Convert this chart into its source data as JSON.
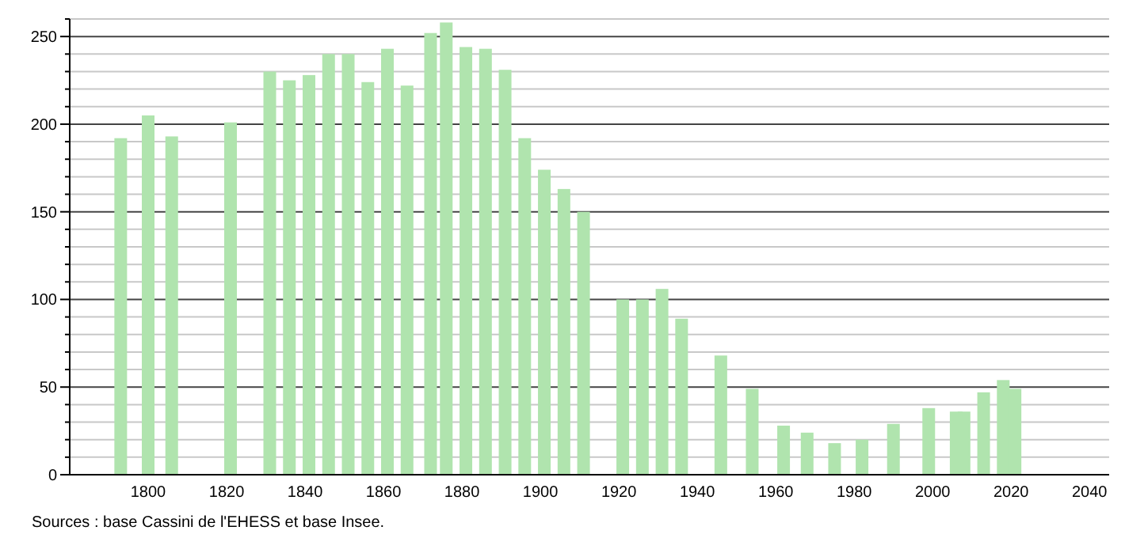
{
  "chart_data": {
    "type": "bar",
    "x": [
      1793,
      1800,
      1806,
      1821,
      1831,
      1836,
      1841,
      1846,
      1851,
      1856,
      1861,
      1866,
      1872,
      1876,
      1881,
      1886,
      1891,
      1896,
      1901,
      1906,
      1911,
      1921,
      1926,
      1931,
      1936,
      1946,
      1954,
      1962,
      1968,
      1975,
      1982,
      1990,
      1999,
      2006,
      2008,
      2013,
      2018,
      2021
    ],
    "values": [
      192,
      205,
      193,
      201,
      230,
      225,
      228,
      240,
      240,
      224,
      243,
      222,
      252,
      258,
      244,
      243,
      231,
      192,
      174,
      163,
      150,
      100,
      100,
      106,
      89,
      68,
      49,
      28,
      24,
      18,
      20,
      29,
      38,
      36,
      36,
      47,
      54,
      49
    ],
    "color": "#b0e4ae",
    "xlim": [
      1780,
      2045
    ],
    "xticks": [
      1800,
      1820,
      1840,
      1860,
      1880,
      1900,
      1920,
      1940,
      1960,
      1980,
      2000,
      2020,
      2040
    ],
    "ylim": [
      0,
      260
    ],
    "yticks": [
      0,
      {
        "value": 10,
        "label": null
      },
      {
        "value": 20,
        "label": null
      },
      {
        "value": 30,
        "label": null
      },
      {
        "value": 40,
        "label": null
      },
      50,
      {
        "value": 60,
        "label": null
      },
      {
        "value": 70,
        "label": null
      },
      {
        "value": 80,
        "label": null
      },
      {
        "value": 90,
        "label": null
      },
      100,
      {
        "value": 110,
        "label": null
      },
      {
        "value": 120,
        "label": null
      },
      {
        "value": 130,
        "label": null
      },
      {
        "value": 140,
        "label": null
      },
      150,
      {
        "value": 160,
        "label": null
      },
      {
        "value": 170,
        "label": null
      },
      {
        "value": 180,
        "label": null
      },
      {
        "value": 190,
        "label": null
      },
      200,
      {
        "value": 210,
        "label": null
      },
      {
        "value": 220,
        "label": null
      },
      {
        "value": 230,
        "label": null
      },
      {
        "value": 240,
        "label": null
      },
      250,
      {
        "value": 260,
        "label": null
      }
    ],
    "grid": true,
    "annotations": [
      "Sources : base Cassini de l'EHESS et base Insee."
    ]
  }
}
